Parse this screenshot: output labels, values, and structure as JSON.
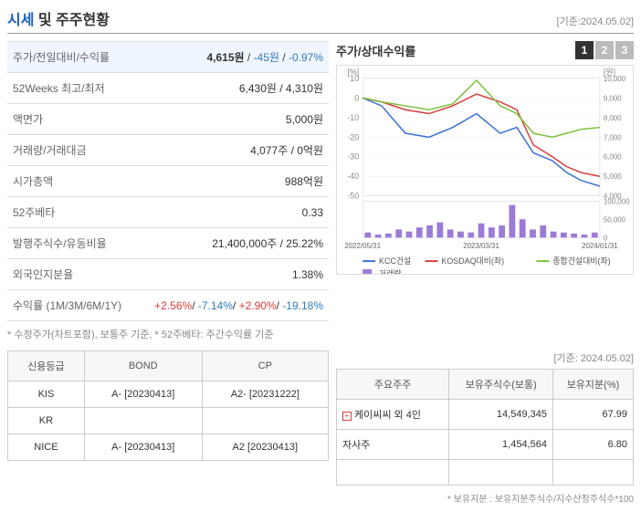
{
  "header": {
    "title_blue": "시세",
    "title_rest": " 및 주주현황",
    "date": "[기준:2024.05.02]"
  },
  "info_rows": [
    {
      "label": "주가/전일대비/수익률",
      "value_highlight": true,
      "parts": [
        {
          "text": "4,615원",
          "cls": "bold"
        },
        {
          "text": " / ",
          "cls": ""
        },
        {
          "text": "-45원",
          "cls": "blue-txt"
        },
        {
          "text": " / ",
          "cls": ""
        },
        {
          "text": "-0.97%",
          "cls": "blue-txt"
        }
      ]
    },
    {
      "label": "52Weeks 최고/최저",
      "parts": [
        {
          "text": "6,430원 / 4,310원",
          "cls": ""
        }
      ]
    },
    {
      "label": "액면가",
      "parts": [
        {
          "text": "5,000원",
          "cls": ""
        }
      ]
    },
    {
      "label": "거래량/거래대금",
      "parts": [
        {
          "text": "4,077주 / 0억원",
          "cls": ""
        }
      ]
    },
    {
      "label": "시가총액",
      "parts": [
        {
          "text": "988억원",
          "cls": ""
        }
      ]
    },
    {
      "label": "52주베타",
      "parts": [
        {
          "text": "0.33",
          "cls": ""
        }
      ]
    },
    {
      "label": "발행주식수/유동비율",
      "parts": [
        {
          "text": "21,400,000주 / 25.22%",
          "cls": ""
        }
      ]
    },
    {
      "label": "외국인지분율",
      "parts": [
        {
          "text": "1.38%",
          "cls": ""
        }
      ]
    },
    {
      "label": "수익률 (1M/3M/6M/1Y)",
      "parts": [
        {
          "text": "+2.56%",
          "cls": "red"
        },
        {
          "text": "/ ",
          "cls": ""
        },
        {
          "text": "-7.14%",
          "cls": "blue-txt"
        },
        {
          "text": "/ ",
          "cls": ""
        },
        {
          "text": "+2.90%",
          "cls": "red"
        },
        {
          "text": "/ ",
          "cls": ""
        },
        {
          "text": "-19.18%",
          "cls": "blue-txt"
        }
      ]
    }
  ],
  "note": "* 수정주가(차트포함), 보통주 기준, * 52주베타: 주간수익률 기준",
  "chart": {
    "title": "주가/상대수익률",
    "pages": [
      "1",
      "2",
      "3"
    ],
    "active_page": 0,
    "left_label": "[%]",
    "right_label": "[원]",
    "left_ticks": [
      10,
      0,
      -10,
      -20,
      -30,
      -40,
      -50
    ],
    "right_ticks": [
      10000,
      9000,
      8000,
      7000,
      6000,
      5000,
      4000
    ],
    "vol_ticks": [
      100000,
      50000,
      0
    ],
    "x_labels": [
      "2022/05/31",
      "2023/03/31",
      "2024/01/31"
    ],
    "series": {
      "kcc": {
        "color": "#3b6fd6",
        "pts": [
          [
            0,
            0
          ],
          [
            8,
            -4
          ],
          [
            18,
            -18
          ],
          [
            28,
            -20
          ],
          [
            38,
            -15
          ],
          [
            48,
            -8
          ],
          [
            58,
            -18
          ],
          [
            65,
            -15
          ],
          [
            72,
            -28
          ],
          [
            80,
            -32
          ],
          [
            86,
            -38
          ],
          [
            92,
            -42
          ],
          [
            100,
            -45
          ]
        ]
      },
      "kosdaq": {
        "color": "#d43f3a",
        "pts": [
          [
            0,
            0
          ],
          [
            8,
            -2
          ],
          [
            18,
            -6
          ],
          [
            28,
            -8
          ],
          [
            38,
            -4
          ],
          [
            48,
            2
          ],
          [
            58,
            -2
          ],
          [
            65,
            -6
          ],
          [
            72,
            -24
          ],
          [
            80,
            -30
          ],
          [
            86,
            -35
          ],
          [
            92,
            -38
          ],
          [
            100,
            -40
          ]
        ]
      },
      "construction": {
        "color": "#7bbf3b",
        "pts": [
          [
            0,
            0
          ],
          [
            8,
            -2
          ],
          [
            18,
            -4
          ],
          [
            28,
            -6
          ],
          [
            38,
            -3
          ],
          [
            48,
            9
          ],
          [
            58,
            -4
          ],
          [
            65,
            -8
          ],
          [
            72,
            -18
          ],
          [
            80,
            -20
          ],
          [
            86,
            -18
          ],
          [
            92,
            -16
          ],
          [
            100,
            -15
          ]
        ]
      }
    },
    "volume_color": "#9b7bd6",
    "volume_bars": [
      5,
      3,
      4,
      8,
      6,
      10,
      12,
      15,
      8,
      6,
      5,
      14,
      10,
      12,
      32,
      18,
      8,
      12,
      6,
      5,
      4,
      3,
      5
    ],
    "legend": [
      {
        "type": "line",
        "color": "#3b6fd6",
        "label": "KCC건설"
      },
      {
        "type": "line",
        "color": "#d43f3a",
        "label": "KOSDAQ대비(좌)"
      },
      {
        "type": "line",
        "color": "#7bbf3b",
        "label": "종합건설대비(좌)"
      },
      {
        "type": "box",
        "color": "#9b7bd6",
        "label": "거래량"
      }
    ]
  },
  "rating": {
    "headers": [
      "신용등급",
      "BOND",
      "CP"
    ],
    "rows": [
      [
        "KIS",
        "A-  [20230413]",
        "A2-  [20231222]"
      ],
      [
        "KR",
        "",
        ""
      ],
      [
        "NICE",
        "A-  [20230413]",
        "A2  [20230413]"
      ]
    ]
  },
  "shareholder": {
    "date": "[기준: 2024.05.02]",
    "headers": [
      "주요주주",
      "보유주식수(보통)",
      "보유지분(%)"
    ],
    "rows": [
      {
        "expandable": true,
        "name": "케이씨씨 외 4인",
        "shares": "14,549,345",
        "pct": "67.99"
      },
      {
        "expandable": false,
        "name": "자사주",
        "shares": "1,454,564",
        "pct": "6.80"
      }
    ],
    "note": "* 보유지분 : 보유지분주식수/지수산정주식수*100"
  }
}
